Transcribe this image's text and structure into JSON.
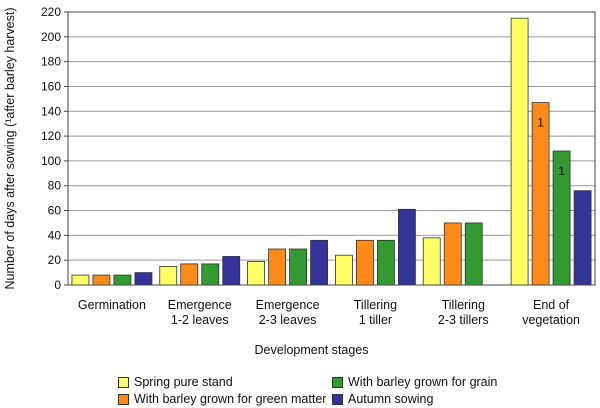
{
  "chart_data": {
    "type": "bar",
    "title": "",
    "xlabel": "Development stages",
    "ylabel": "Number of days after sowing (¹after barley harvest)",
    "ylim": [
      0,
      220
    ],
    "yticks": [
      0,
      20,
      40,
      60,
      80,
      100,
      120,
      140,
      160,
      180,
      200,
      220
    ],
    "grid": "horizontal",
    "legend_position": "bottom",
    "categories": [
      [
        "Germination"
      ],
      [
        "Emergence",
        "1-2 leaves"
      ],
      [
        "Emergence",
        "2-3 leaves"
      ],
      [
        "Tillering",
        "1 tiller"
      ],
      [
        "Tillering",
        "2-3 tillers"
      ],
      [
        "End of",
        "vegetation"
      ]
    ],
    "series": [
      {
        "name": "Spring pure stand",
        "color": "#ffff66",
        "values": [
          8,
          15,
          19,
          24,
          38,
          215
        ]
      },
      {
        "name": "With barley grown for green matter",
        "color": "#ff8c1a",
        "values": [
          8,
          17,
          29,
          36,
          50,
          147
        ]
      },
      {
        "name": "With barley grown for grain",
        "color": "#339933",
        "values": [
          8,
          17,
          29,
          36,
          50,
          108
        ]
      },
      {
        "name": "Autumn sowing",
        "color": "#333399",
        "values": [
          10,
          23,
          36,
          61,
          null,
          76
        ]
      }
    ],
    "annotations": [
      {
        "category_index": 5,
        "series_index": 1,
        "text": "1"
      },
      {
        "category_index": 5,
        "series_index": 2,
        "text": "1"
      }
    ]
  }
}
